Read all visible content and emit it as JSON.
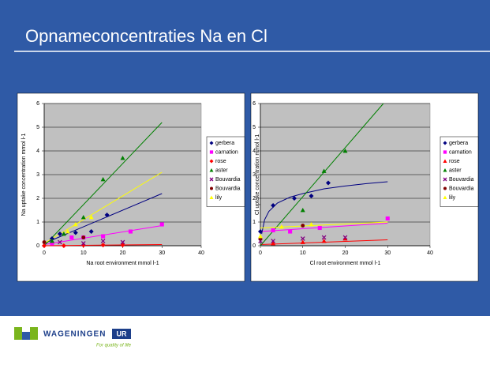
{
  "title": "Opnameconcentraties  Na en Cl",
  "footer": {
    "brand": "WAGENINGEN",
    "brand_box": "UR",
    "slogan": "For quality of life"
  },
  "chart_data": [
    {
      "type": "scatter",
      "xlabel": "Na root environment mmol l-1",
      "ylabel": "Na uptake concentration mmol l-1",
      "xlim": [
        0,
        40
      ],
      "xticks": [
        0,
        10,
        20,
        30,
        40
      ],
      "ylim": [
        0,
        6
      ],
      "yticks": [
        0,
        1,
        2,
        3,
        4,
        5,
        6
      ],
      "grid": true,
      "legend": "right",
      "series": [
        {
          "name": "gerbera",
          "color": "#000080",
          "marker": "diamond",
          "x": [
            2,
            4,
            8,
            12,
            16
          ],
          "values": [
            0.3,
            0.5,
            0.55,
            0.6,
            1.3
          ],
          "trend": {
            "x": [
              0,
              30
            ],
            "values": [
              0.1,
              2.2
            ]
          }
        },
        {
          "name": "carnation",
          "color": "#ff00ff",
          "marker": "square",
          "x": [
            2,
            7,
            10,
            15,
            22,
            30
          ],
          "values": [
            0.1,
            0.35,
            0.35,
            0.4,
            0.6,
            0.9
          ],
          "trend": {
            "x": [
              0,
              30
            ],
            "values": [
              0.05,
              0.85
            ]
          }
        },
        {
          "name": "rose",
          "color": "#ff0000",
          "marker": "diamond",
          "x": [
            0,
            5,
            10,
            15,
            20
          ],
          "values": [
            0,
            0,
            0.02,
            0.03,
            0.03
          ],
          "trend": {
            "x": [
              0,
              30
            ],
            "values": [
              0,
              0.05
            ]
          }
        },
        {
          "name": "aster",
          "color": "#008000",
          "marker": "triangle",
          "x": [
            2,
            5,
            10,
            15,
            20
          ],
          "values": [
            0.2,
            0.5,
            1.2,
            2.8,
            3.7
          ],
          "trend": {
            "x": [
              0,
              30
            ],
            "values": [
              0,
              5.2
            ]
          }
        },
        {
          "name": "Bouvardia",
          "color": "#800080",
          "marker": "x",
          "x": [
            4,
            10,
            15,
            20
          ],
          "values": [
            0.15,
            0.1,
            0.2,
            0.15
          ]
        },
        {
          "name": "Bouvardia",
          "color": "#800000",
          "marker": "circle",
          "x": [
            0,
            10
          ],
          "values": [
            0.15,
            0.35
          ]
        },
        {
          "name": "lily",
          "color": "#ffff00",
          "marker": "triangle",
          "x": [
            6,
            8,
            12
          ],
          "values": [
            0.6,
            0.9,
            1.2
          ],
          "trend": {
            "x": [
              0,
              30
            ],
            "values": [
              0.1,
              3.1
            ]
          }
        }
      ]
    },
    {
      "type": "scatter",
      "xlabel": "Cl root environment mmol l-1",
      "ylabel": "Cl uptake concentration mmol l-1",
      "xlim": [
        0,
        40
      ],
      "xticks": [
        0,
        10,
        20,
        30,
        40
      ],
      "ylim": [
        0,
        6
      ],
      "yticks": [
        0,
        1,
        2,
        3,
        4,
        5,
        6
      ],
      "grid": true,
      "legend": "right",
      "series": [
        {
          "name": "gerbera",
          "color": "#000080",
          "marker": "diamond",
          "x": [
            0,
            3,
            8,
            12,
            16
          ],
          "values": [
            0.6,
            1.7,
            2,
            2.1,
            2.65
          ],
          "trend": {
            "x": [
              0.3,
              1,
              2,
              4,
              7,
              10,
              15,
              20,
              25,
              30
            ],
            "values": [
              0.5,
              1.1,
              1.45,
              1.8,
              2.05,
              2.2,
              2.4,
              2.52,
              2.62,
              2.7
            ]
          }
        },
        {
          "name": "carnation",
          "color": "#ff00ff",
          "marker": "square",
          "x": [
            3,
            7,
            14,
            30
          ],
          "values": [
            0.65,
            0.6,
            0.75,
            1.15
          ],
          "trend": {
            "x": [
              0,
              30
            ],
            "values": [
              0.6,
              0.95
            ]
          }
        },
        {
          "name": "rose",
          "color": "#ff0000",
          "marker": "triangle",
          "x": [
            3,
            10,
            15,
            20
          ],
          "values": [
            0.1,
            0.15,
            0.2,
            0.3
          ],
          "trend": {
            "x": [
              0,
              30
            ],
            "values": [
              0.05,
              0.25
            ]
          }
        },
        {
          "name": "aster",
          "color": "#008000",
          "marker": "triangle",
          "x": [
            10,
            15,
            20
          ],
          "values": [
            1.5,
            3.15,
            4
          ],
          "trend": {
            "x": [
              0,
              29
            ],
            "values": [
              0,
              6
            ]
          }
        },
        {
          "name": "Bouvardia",
          "color": "#800080",
          "marker": "x",
          "x": [
            0,
            3,
            10,
            15,
            20
          ],
          "values": [
            0.2,
            0.2,
            0.3,
            0.35,
            0.35
          ]
        },
        {
          "name": "Bouvardia",
          "color": "#800000",
          "marker": "circle",
          "x": [
            0,
            10
          ],
          "values": [
            0.3,
            0.85
          ]
        },
        {
          "name": "lily",
          "color": "#ffff00",
          "marker": "triangle",
          "x": [
            0,
            5,
            12
          ],
          "values": [
            0.4,
            0.8,
            0.9
          ],
          "trend": {
            "x": [
              0,
              30
            ],
            "values": [
              0.75,
              1
            ]
          }
        }
      ]
    }
  ]
}
